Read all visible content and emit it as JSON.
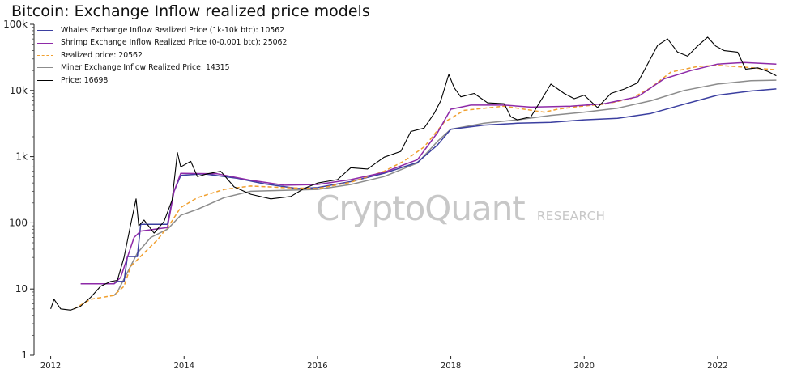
{
  "chart_data": {
    "type": "line",
    "title": "Bitcoin: Exchange Inflow realized price models",
    "xlabel": "",
    "ylabel": "",
    "yscale": "log",
    "ylim": [
      1,
      100000
    ],
    "xlim": [
      2011.75,
      2022.9
    ],
    "y_ticks": [
      {
        "value": 1,
        "label": "1"
      },
      {
        "value": 10,
        "label": "10"
      },
      {
        "value": 100,
        "label": "100"
      },
      {
        "value": 1000,
        "label": "1k"
      },
      {
        "value": 10000,
        "label": "10k"
      },
      {
        "value": 100000,
        "label": "100k"
      }
    ],
    "x_ticks": [
      {
        "value": 2012,
        "label": "2012"
      },
      {
        "value": 2014,
        "label": "2014"
      },
      {
        "value": 2016,
        "label": "2016"
      },
      {
        "value": 2018,
        "label": "2018"
      },
      {
        "value": 2020,
        "label": "2020"
      },
      {
        "value": 2022,
        "label": "2022"
      }
    ],
    "grid": false,
    "legend_position": "top-left",
    "series": [
      {
        "name": "Whales Exchange Inflow Realized Price (1k-10k btc): 10562",
        "color": "#3b3fa0",
        "style": "solid",
        "points": [
          [
            2012.5,
            12
          ],
          [
            2012.95,
            12
          ],
          [
            2013.0,
            13
          ],
          [
            2013.1,
            13
          ],
          [
            2013.15,
            31
          ],
          [
            2013.3,
            31
          ],
          [
            2013.35,
            95
          ],
          [
            2013.75,
            95
          ],
          [
            2013.85,
            300
          ],
          [
            2013.95,
            520
          ],
          [
            2014.3,
            550
          ],
          [
            2014.8,
            470
          ],
          [
            2015.2,
            390
          ],
          [
            2015.7,
            330
          ],
          [
            2016.0,
            340
          ],
          [
            2016.5,
            420
          ],
          [
            2017.0,
            560
          ],
          [
            2017.5,
            820
          ],
          [
            2017.8,
            1500
          ],
          [
            2018.0,
            2600
          ],
          [
            2018.5,
            3000
          ],
          [
            2019.0,
            3200
          ],
          [
            2019.5,
            3300
          ],
          [
            2020.0,
            3600
          ],
          [
            2020.5,
            3800
          ],
          [
            2021.0,
            4500
          ],
          [
            2021.5,
            6200
          ],
          [
            2022.0,
            8500
          ],
          [
            2022.5,
            9800
          ],
          [
            2022.88,
            10562
          ]
        ]
      },
      {
        "name": "Shrimp Exchange Inflow Realized Price (0-0.001 btc): 25062",
        "color": "#8e2aa8",
        "style": "solid",
        "points": [
          [
            2012.45,
            12
          ],
          [
            2012.95,
            12
          ],
          [
            2013.05,
            15
          ],
          [
            2013.25,
            60
          ],
          [
            2013.35,
            75
          ],
          [
            2013.75,
            85
          ],
          [
            2013.85,
            300
          ],
          [
            2013.95,
            560
          ],
          [
            2014.5,
            550
          ],
          [
            2015.0,
            440
          ],
          [
            2015.5,
            370
          ],
          [
            2016.0,
            380
          ],
          [
            2016.5,
            450
          ],
          [
            2017.0,
            580
          ],
          [
            2017.5,
            900
          ],
          [
            2017.8,
            2300
          ],
          [
            2018.0,
            5200
          ],
          [
            2018.3,
            6000
          ],
          [
            2018.8,
            6000
          ],
          [
            2019.2,
            5600
          ],
          [
            2019.8,
            5800
          ],
          [
            2020.3,
            6300
          ],
          [
            2020.8,
            8000
          ],
          [
            2021.2,
            15000
          ],
          [
            2021.6,
            20000
          ],
          [
            2022.0,
            25000
          ],
          [
            2022.4,
            26500
          ],
          [
            2022.88,
            25062
          ]
        ]
      },
      {
        "name": "Realized price: 20562",
        "color": "#f0a030",
        "style": "dashed",
        "points": [
          [
            2012.35,
            5
          ],
          [
            2012.6,
            7
          ],
          [
            2012.95,
            8
          ],
          [
            2013.1,
            11
          ],
          [
            2013.2,
            22
          ],
          [
            2013.4,
            35
          ],
          [
            2013.6,
            55
          ],
          [
            2013.8,
            100
          ],
          [
            2013.95,
            170
          ],
          [
            2014.2,
            240
          ],
          [
            2014.6,
            320
          ],
          [
            2015.0,
            360
          ],
          [
            2015.5,
            340
          ],
          [
            2016.0,
            330
          ],
          [
            2016.5,
            410
          ],
          [
            2017.0,
            600
          ],
          [
            2017.3,
            860
          ],
          [
            2017.6,
            1400
          ],
          [
            2017.9,
            3300
          ],
          [
            2018.2,
            5000
          ],
          [
            2018.8,
            5800
          ],
          [
            2019.1,
            5200
          ],
          [
            2019.4,
            4700
          ],
          [
            2019.6,
            5200
          ],
          [
            2019.9,
            5700
          ],
          [
            2020.3,
            6200
          ],
          [
            2020.7,
            7500
          ],
          [
            2021.0,
            11000
          ],
          [
            2021.3,
            19000
          ],
          [
            2021.7,
            23000
          ],
          [
            2022.0,
            24000
          ],
          [
            2022.4,
            22500
          ],
          [
            2022.88,
            20562
          ]
        ]
      },
      {
        "name": "Miner Exchange Inflow Realized Price: 14315",
        "color": "#8c8c8c",
        "style": "solid",
        "points": [
          [
            2012.95,
            8
          ],
          [
            2013.0,
            9
          ],
          [
            2013.3,
            35
          ],
          [
            2013.5,
            60
          ],
          [
            2013.75,
            80
          ],
          [
            2013.8,
            90
          ],
          [
            2013.95,
            130
          ],
          [
            2014.2,
            160
          ],
          [
            2014.6,
            240
          ],
          [
            2015.0,
            300
          ],
          [
            2015.5,
            310
          ],
          [
            2016.0,
            320
          ],
          [
            2016.5,
            380
          ],
          [
            2017.0,
            500
          ],
          [
            2017.5,
            800
          ],
          [
            2017.8,
            1700
          ],
          [
            2018.0,
            2600
          ],
          [
            2018.5,
            3200
          ],
          [
            2019.0,
            3600
          ],
          [
            2019.5,
            4200
          ],
          [
            2020.0,
            4700
          ],
          [
            2020.5,
            5400
          ],
          [
            2021.0,
            7000
          ],
          [
            2021.5,
            10000
          ],
          [
            2022.0,
            12500
          ],
          [
            2022.5,
            14000
          ],
          [
            2022.88,
            14315
          ]
        ]
      },
      {
        "name": "Price: 16698",
        "color": "#000000",
        "style": "solid",
        "points": [
          [
            2012.0,
            5
          ],
          [
            2012.05,
            7
          ],
          [
            2012.15,
            5
          ],
          [
            2012.3,
            4.8
          ],
          [
            2012.45,
            5.5
          ],
          [
            2012.6,
            7.5
          ],
          [
            2012.75,
            11
          ],
          [
            2012.9,
            13
          ],
          [
            2013.0,
            13.5
          ],
          [
            2013.1,
            30
          ],
          [
            2013.2,
            95
          ],
          [
            2013.28,
            230
          ],
          [
            2013.32,
            90
          ],
          [
            2013.4,
            110
          ],
          [
            2013.55,
            70
          ],
          [
            2013.7,
            105
          ],
          [
            2013.82,
            220
          ],
          [
            2013.9,
            1150
          ],
          [
            2013.95,
            700
          ],
          [
            2014.1,
            850
          ],
          [
            2014.2,
            500
          ],
          [
            2014.35,
            550
          ],
          [
            2014.55,
            600
          ],
          [
            2014.75,
            350
          ],
          [
            2015.0,
            270
          ],
          [
            2015.3,
            230
          ],
          [
            2015.6,
            250
          ],
          [
            2015.8,
            330
          ],
          [
            2016.0,
            400
          ],
          [
            2016.3,
            450
          ],
          [
            2016.5,
            680
          ],
          [
            2016.75,
            650
          ],
          [
            2017.0,
            980
          ],
          [
            2017.25,
            1200
          ],
          [
            2017.4,
            2400
          ],
          [
            2017.6,
            2700
          ],
          [
            2017.75,
            4500
          ],
          [
            2017.85,
            7000
          ],
          [
            2017.97,
            17500
          ],
          [
            2018.05,
            11000
          ],
          [
            2018.15,
            8000
          ],
          [
            2018.35,
            9000
          ],
          [
            2018.55,
            6500
          ],
          [
            2018.8,
            6300
          ],
          [
            2018.9,
            4000
          ],
          [
            2019.0,
            3600
          ],
          [
            2019.2,
            4000
          ],
          [
            2019.4,
            8500
          ],
          [
            2019.5,
            12500
          ],
          [
            2019.7,
            9000
          ],
          [
            2019.85,
            7500
          ],
          [
            2020.0,
            8500
          ],
          [
            2020.2,
            5500
          ],
          [
            2020.4,
            9000
          ],
          [
            2020.6,
            10500
          ],
          [
            2020.8,
            13000
          ],
          [
            2020.95,
            25000
          ],
          [
            2021.1,
            48000
          ],
          [
            2021.25,
            60000
          ],
          [
            2021.4,
            38000
          ],
          [
            2021.55,
            33000
          ],
          [
            2021.7,
            47000
          ],
          [
            2021.85,
            64000
          ],
          [
            2021.97,
            47000
          ],
          [
            2022.1,
            40000
          ],
          [
            2022.3,
            38000
          ],
          [
            2022.42,
            21000
          ],
          [
            2022.6,
            22000
          ],
          [
            2022.75,
            19500
          ],
          [
            2022.88,
            16698
          ]
        ]
      }
    ]
  },
  "watermark": {
    "brand": "CryptoQuant",
    "tag": "RESEARCH"
  }
}
